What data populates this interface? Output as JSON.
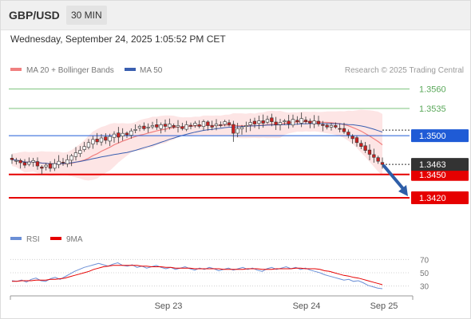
{
  "header": {
    "symbol": "GBP/USD",
    "timeframe": "30 MIN"
  },
  "datetime": "Wednesday, September 24, 2025 1:05:52 PM CET",
  "legend": {
    "ma20_bb": "MA 20 + Bollinger Bands",
    "ma50": "MA 50",
    "copyright": "Research © 2025 Trading Central",
    "rsi": "RSI",
    "rsi_ma": "9MA"
  },
  "colors": {
    "ma20": "#f08080",
    "ma50": "#3a5fb0",
    "bb_fill": "#fde0e0",
    "support": "#e60000",
    "resistance": "#7cc37c",
    "pivot": "#1f5bd6",
    "current_price_bg": "#333333",
    "arrow": "#2e5ea8",
    "rsi": "#6b8fd6",
    "rsi_ma": "#e60000",
    "candle_up": "#ffffff",
    "candle_down": "#cc2020"
  },
  "chart_data": {
    "type": "candlestick",
    "y_range": [
      1.338,
      1.3575
    ],
    "x_ticks": [
      "Sep 23",
      "Sep 24",
      "Sep 25"
    ],
    "levels": [
      {
        "label": "1.3560",
        "value": 1.356,
        "kind": "resistance"
      },
      {
        "label": "1.3535",
        "value": 1.3535,
        "kind": "resistance"
      },
      {
        "label": "1.3500",
        "value": 1.35,
        "kind": "pivot"
      },
      {
        "label": "1.3450",
        "value": 1.345,
        "kind": "support"
      },
      {
        "label": "1.3420",
        "value": 1.342,
        "kind": "support"
      }
    ],
    "current_price": {
      "label": "1.3463",
      "value": 1.3463
    },
    "forecast_target": 1.342,
    "close_path": [
      1.3469,
      1.3468,
      1.3465,
      1.3462,
      1.3466,
      1.3468,
      1.3461,
      1.3458,
      1.3462,
      1.3458,
      1.3464,
      1.3467,
      1.3465,
      1.3469,
      1.3474,
      1.3478,
      1.3481,
      1.3486,
      1.3491,
      1.3495,
      1.3492,
      1.3497,
      1.3494,
      1.3499,
      1.3502,
      1.3498,
      1.3503,
      1.3501,
      1.3506,
      1.3508,
      1.3512,
      1.3509,
      1.3511,
      1.3513,
      1.3511,
      1.3514,
      1.3512,
      1.3515,
      1.3511,
      1.3513,
      1.3509,
      1.3514,
      1.3512,
      1.3516,
      1.3512,
      1.3518,
      1.3513,
      1.3511,
      1.3515,
      1.3513,
      1.3518,
      1.3514,
      1.3503,
      1.3509,
      1.3511,
      1.3513,
      1.3517,
      1.3515,
      1.3519,
      1.3516,
      1.3521,
      1.3518,
      1.3514,
      1.3517,
      1.3519,
      1.3515,
      1.3521,
      1.3518,
      1.3522,
      1.3518,
      1.3516,
      1.3519,
      1.3515,
      1.3513,
      1.3511,
      1.3513,
      1.3511,
      1.3509,
      1.3505,
      1.3501,
      1.3496,
      1.3491,
      1.3486,
      1.3481,
      1.3476,
      1.3472,
      1.3467,
      1.3463
    ],
    "rsi": {
      "ticks": [
        70,
        50,
        30
      ],
      "range": [
        20,
        80
      ],
      "values": [
        38,
        37,
        39,
        36,
        40,
        42,
        38,
        37,
        41,
        43,
        40,
        44,
        48,
        52,
        55,
        58,
        60,
        62,
        64,
        62,
        60,
        63,
        65,
        61,
        60,
        62,
        58,
        60,
        57,
        59,
        61,
        58,
        56,
        58,
        55,
        57,
        59,
        56,
        54,
        57,
        55,
        58,
        56,
        53,
        55,
        57,
        54,
        56,
        58,
        55,
        57,
        54,
        52,
        56,
        58,
        55,
        57,
        59,
        56,
        58,
        55,
        57,
        54,
        52,
        50,
        47,
        45,
        43,
        41,
        39,
        40,
        37,
        38,
        35,
        31,
        29,
        27,
        26
      ],
      "ma9": [
        37,
        37,
        38,
        38,
        38,
        39,
        39,
        39,
        40,
        40,
        41,
        42,
        44,
        46,
        48,
        50,
        52,
        55,
        57,
        59,
        60,
        61,
        61,
        61,
        61,
        61,
        61,
        60,
        60,
        59,
        59,
        59,
        58,
        58,
        57,
        57,
        57,
        57,
        56,
        56,
        56,
        56,
        56,
        56,
        55,
        55,
        55,
        55,
        55,
        56,
        56,
        56,
        55,
        55,
        55,
        56,
        56,
        56,
        56,
        57,
        57,
        56,
        56,
        56,
        55,
        53,
        52,
        50,
        48,
        46,
        45,
        43,
        42,
        40,
        38,
        36,
        34,
        32
      ]
    }
  }
}
